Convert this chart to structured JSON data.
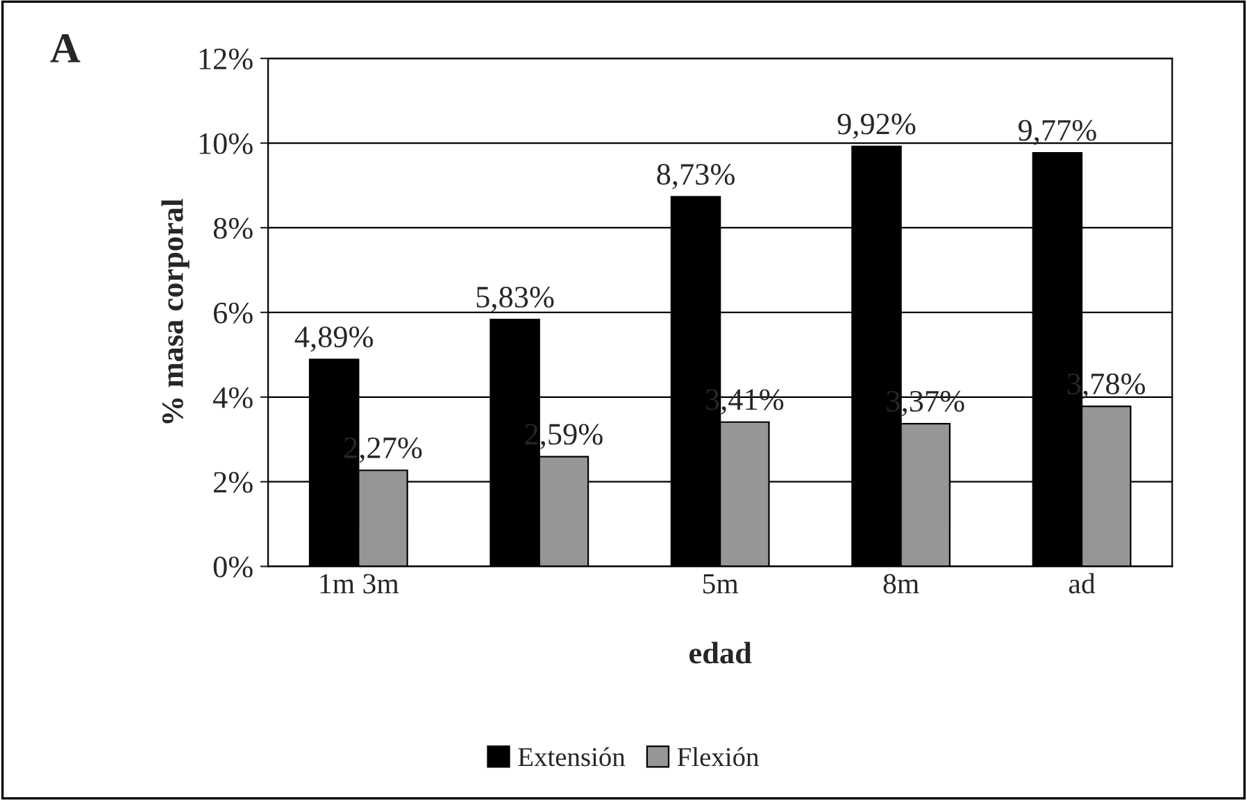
{
  "chart_data": {
    "type": "bar",
    "categories": [
      "1m 3m",
      null,
      "5m",
      "8m",
      "ad"
    ],
    "series": [
      {
        "name": "Extensión",
        "color": "#000000",
        "values": [
          4.89,
          5.83,
          8.73,
          9.92,
          9.77
        ],
        "value_labels": [
          "4,89%",
          "5,83%",
          "8,73%",
          "9,92%",
          "9,77%"
        ]
      },
      {
        "name": "Flexión",
        "color": "#969696",
        "values": [
          2.27,
          2.59,
          3.41,
          3.37,
          3.78
        ],
        "value_labels": [
          "2,27%",
          "2,59%",
          "3,41%",
          "3,37%",
          "3,78%"
        ]
      }
    ],
    "xlabel": "edad",
    "ylabel": "% masa corporal",
    "annotations": [
      "A"
    ],
    "ylim": [
      0,
      12
    ],
    "yticks": [
      {
        "value": 0,
        "label": "0%"
      },
      {
        "value": 2,
        "label": "2%"
      },
      {
        "value": 4,
        "label": "4%"
      },
      {
        "value": 6,
        "label": "6%"
      },
      {
        "value": 8,
        "label": "8%"
      },
      {
        "value": 10,
        "label": "10%"
      },
      {
        "value": 12,
        "label": "12%"
      }
    ],
    "grid": "y",
    "legend": "bottom"
  }
}
